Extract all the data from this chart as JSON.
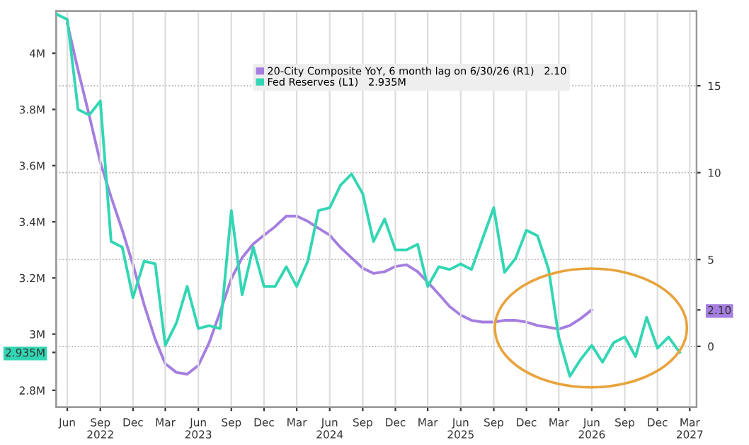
{
  "chart_data": {
    "type": "line",
    "x": [
      "2022-05",
      "2022-06",
      "2022-07",
      "2022-08",
      "2022-09",
      "2022-10",
      "2022-11",
      "2022-12",
      "2023-01",
      "2023-02",
      "2023-03",
      "2023-04",
      "2023-05",
      "2023-06",
      "2023-07",
      "2023-08",
      "2023-09",
      "2023-10",
      "2023-11",
      "2023-12",
      "2024-01",
      "2024-02",
      "2024-03",
      "2024-04",
      "2024-05",
      "2024-06",
      "2024-07",
      "2024-08",
      "2024-09",
      "2024-10",
      "2024-11",
      "2024-12",
      "2025-01",
      "2025-02",
      "2025-03",
      "2025-04",
      "2025-05",
      "2025-06",
      "2025-07",
      "2025-08",
      "2025-09",
      "2025-10",
      "2025-11",
      "2025-12",
      "2026-01",
      "2026-02",
      "2026-03",
      "2026-04",
      "2026-05",
      "2026-06",
      "2026-07",
      "2026-08",
      "2026-09",
      "2026-10",
      "2026-11",
      "2026-12",
      "2027-01",
      "2027-02"
    ],
    "series": [
      {
        "name": "20-City Composite YoY, 6 month lag on 6/30/26 (R1)   2.10",
        "axis": "y2",
        "color": "#a57ee0",
        "values": [
          null,
          18.6,
          15.9,
          13.3,
          10.6,
          8.6,
          6.7,
          4.7,
          2.4,
          0.4,
          -1.0,
          -1.5,
          -1.6,
          -1.1,
          0.2,
          2.0,
          3.9,
          5.1,
          5.9,
          6.4,
          6.9,
          7.5,
          7.5,
          7.2,
          6.8,
          6.4,
          5.7,
          5.1,
          4.5,
          4.2,
          4.3,
          4.6,
          4.7,
          4.3,
          3.7,
          3.0,
          2.3,
          1.8,
          1.5,
          1.4,
          1.4,
          1.5,
          1.5,
          1.4,
          1.2,
          1.1,
          1.0,
          1.2,
          1.6,
          2.1,
          null,
          null,
          null,
          null,
          null,
          null,
          null,
          null
        ]
      },
      {
        "name": "Fed Reserves (L1)   2.935M",
        "axis": "y",
        "color": "#33d6b4",
        "values": [
          4.14,
          4.12,
          3.8,
          3.78,
          3.83,
          3.33,
          3.31,
          3.13,
          3.26,
          3.25,
          2.96,
          3.04,
          3.17,
          3.02,
          3.03,
          3.02,
          3.44,
          3.14,
          3.31,
          3.17,
          3.17,
          3.24,
          3.17,
          3.26,
          3.44,
          3.45,
          3.53,
          3.57,
          3.5,
          3.33,
          3.41,
          3.3,
          3.3,
          3.32,
          3.17,
          3.24,
          3.23,
          3.25,
          3.23,
          3.34,
          3.45,
          3.22,
          3.27,
          3.37,
          3.35,
          3.23,
          2.99,
          2.85,
          2.91,
          2.96,
          2.9,
          2.97,
          2.99,
          2.92,
          3.06,
          2.95,
          2.99,
          2.935
        ]
      }
    ],
    "xlim": [
      "2022-05-01",
      "2027-03-20"
    ],
    "xticks": [
      {
        "value": "2022-06",
        "label": "Jun"
      },
      {
        "value": "2022-09",
        "label": "Sep\n2022"
      },
      {
        "value": "2022-12",
        "label": "Dec"
      },
      {
        "value": "2023-03",
        "label": "Mar"
      },
      {
        "value": "2023-06",
        "label": "Jun\n2023"
      },
      {
        "value": "2023-09",
        "label": "Sep"
      },
      {
        "value": "2023-12",
        "label": "Dec"
      },
      {
        "value": "2024-03",
        "label": "Mar"
      },
      {
        "value": "2024-06",
        "label": "Jun\n2024"
      },
      {
        "value": "2024-09",
        "label": "Sep"
      },
      {
        "value": "2024-12",
        "label": "Dec"
      },
      {
        "value": "2025-03",
        "label": "Mar"
      },
      {
        "value": "2025-06",
        "label": "Jun\n2025"
      },
      {
        "value": "2025-09",
        "label": "Sep"
      },
      {
        "value": "2025-12",
        "label": "Dec"
      },
      {
        "value": "2026-03",
        "label": "Mar"
      },
      {
        "value": "2026-06",
        "label": "Jun\n2026"
      },
      {
        "value": "2026-09",
        "label": "Sep"
      },
      {
        "value": "2026-12",
        "label": "Dec"
      },
      {
        "value": "2027-03",
        "label": "Mar\n2027"
      }
    ],
    "ylim": [
      2.74,
      4.15
    ],
    "yticks": [
      {
        "value": 2.935,
        "label": "2.935M"
      },
      {
        "value": 2.8,
        "label": "2.8M"
      },
      {
        "value": 3.0,
        "label": "3M"
      },
      {
        "value": 3.2,
        "label": "3.2M"
      },
      {
        "value": 3.4,
        "label": "3.4M"
      },
      {
        "value": 3.6,
        "label": "3.6M"
      },
      {
        "value": 3.8,
        "label": "3.8M"
      },
      {
        "value": 4.0,
        "label": "4M"
      }
    ],
    "y2lim": [
      -3.5,
      19.3
    ],
    "y2ticks": [
      0,
      {
        "value": 2.1,
        "label": "2.10"
      },
      5,
      10,
      15
    ],
    "grid": true,
    "legend": "top right"
  }
}
